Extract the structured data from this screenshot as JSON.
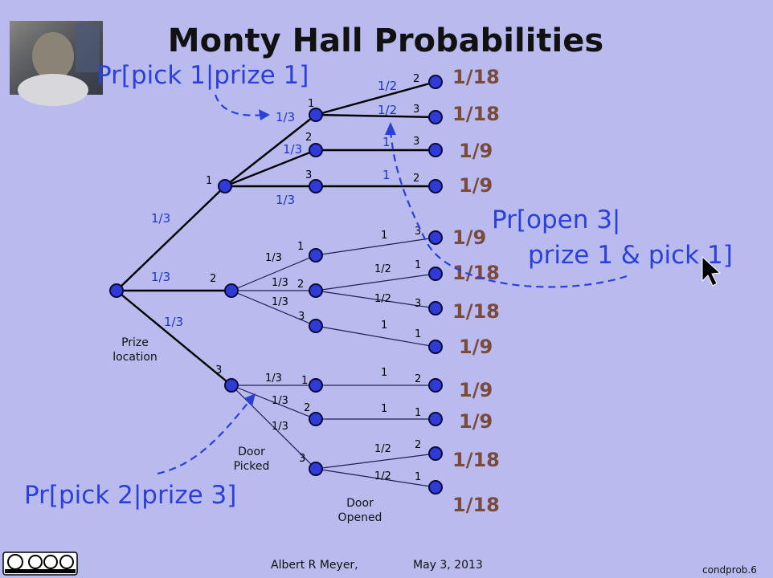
{
  "title": "Monty Hall Probabilities",
  "callouts": {
    "pick1_prize1": "Pr[pick 1|prize 1]",
    "open3_line1": "Pr[open 3|",
    "open3_line2": "prize 1 & pick 1]",
    "pick2_prize3": "Pr[pick 2|prize 3]"
  },
  "captions": {
    "prize_1": "Prize",
    "prize_2": "location",
    "door_picked_1": "Door",
    "door_picked_2": "Picked",
    "door_opened_1": "Door",
    "door_opened_2": "Opened"
  },
  "tree": {
    "prize_probs": [
      "1/3",
      "1/3",
      "1/3"
    ],
    "prize_labels": [
      "1",
      "2",
      "3"
    ],
    "pick_labels": {
      "p1": [
        "1",
        "2",
        "3"
      ],
      "p2": [
        "1",
        "2",
        "3"
      ],
      "p3": [
        "1",
        "2",
        "3"
      ]
    },
    "pick_probs": {
      "p1": [
        "1/3",
        "1/3",
        "1/3"
      ],
      "p2": [
        "1/3",
        "1/3",
        "1/3"
      ],
      "p3": [
        "1/3",
        "1/3",
        "1/3"
      ]
    },
    "open_labels": [
      "2",
      "3",
      "3",
      "2",
      "3",
      "1",
      "3",
      "1",
      "2",
      "1",
      "2",
      "1"
    ],
    "open_probs": [
      "1/2",
      "1/2",
      "1",
      "1",
      "1",
      "1/2",
      "1/2",
      "1",
      "1",
      "1",
      "1/2",
      "1/2"
    ],
    "leaf_values": [
      "1/18",
      "1/18",
      "1/9",
      "1/9",
      "1/9",
      "1/18",
      "1/18",
      "1/9",
      "1/9",
      "1/9",
      "1/18",
      "1/18"
    ]
  },
  "footer": {
    "author": "Albert R Meyer,",
    "date": "May 3, 2013",
    "slide_id": "condprob.6",
    "license": "cc by nc sa"
  }
}
